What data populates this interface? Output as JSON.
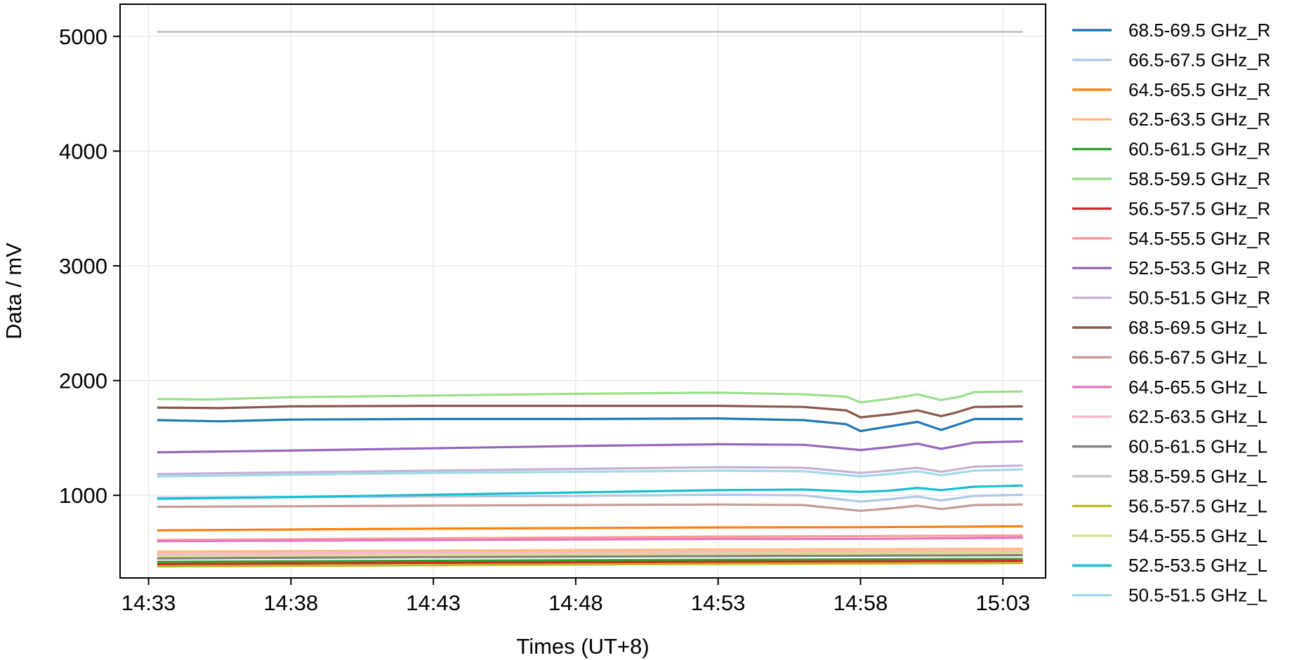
{
  "chart_data": {
    "type": "line",
    "xlabel": "Times (UT+8)",
    "ylabel": "Data / mV",
    "x_range": [
      "14:32:00",
      "15:04:30"
    ],
    "ylim": [
      280,
      5280
    ],
    "x_ticks": [
      "14:33",
      "14:38",
      "14:43",
      "14:48",
      "14:53",
      "14:58",
      "15:03"
    ],
    "y_ticks": [
      1000,
      2000,
      3000,
      4000,
      5000
    ],
    "grid": true,
    "legend_position": "outside-right",
    "x_start": "14:33:20",
    "x_end": "15:03:40",
    "series": [
      {
        "name": "68.5-69.5 GHz_R",
        "color": "#1f77b4",
        "x": [
          "14:33:20",
          "14:35:30",
          "14:38:00",
          "14:43:00",
          "14:48:00",
          "14:53:00",
          "14:56:00",
          "14:57:30",
          "14:58:00",
          "14:59:00",
          "15:00:00",
          "15:00:50",
          "15:01:20",
          "15:02:00",
          "15:03:40"
        ],
        "y": [
          1655,
          1645,
          1660,
          1665,
          1665,
          1670,
          1655,
          1620,
          1560,
          1600,
          1640,
          1570,
          1610,
          1665,
          1665
        ]
      },
      {
        "name": "66.5-67.5 GHz_R",
        "color": "#aec7e8",
        "x": [
          "14:33:20",
          "14:38:00",
          "14:43:00",
          "14:48:00",
          "14:53:00",
          "14:56:00",
          "14:58:00",
          "14:59:00",
          "15:00:00",
          "15:00:50",
          "15:02:00",
          "15:03:40"
        ],
        "y": [
          980,
          985,
          990,
          995,
          1005,
          1000,
          945,
          965,
          990,
          955,
          995,
          1005
        ]
      },
      {
        "name": "64.5-65.5 GHz_R",
        "color": "#ff7f0e",
        "x": [
          "14:33:20",
          "14:43:00",
          "14:53:00",
          "14:58:00",
          "15:03:40"
        ],
        "y": [
          695,
          710,
          720,
          722,
          730
        ]
      },
      {
        "name": "62.5-63.5 GHz_R",
        "color": "#ffbb78",
        "x": [
          "14:33:20",
          "14:43:00",
          "14:53:00",
          "14:58:00",
          "15:03:40"
        ],
        "y": [
          510,
          518,
          528,
          530,
          535
        ]
      },
      {
        "name": "60.5-61.5 GHz_R",
        "color": "#2ca02c",
        "x": [
          "14:33:20",
          "14:43:00",
          "14:53:00",
          "15:03:40"
        ],
        "y": [
          420,
          430,
          438,
          445
        ]
      },
      {
        "name": "58.5-59.5 GHz_R",
        "color": "#98df8a",
        "x": [
          "14:33:20",
          "14:35:00",
          "14:38:00",
          "14:43:00",
          "14:48:00",
          "14:53:00",
          "14:56:00",
          "14:57:30",
          "14:58:00",
          "14:59:00",
          "15:00:00",
          "15:00:50",
          "15:01:30",
          "15:02:00",
          "15:03:40"
        ],
        "y": [
          1840,
          1835,
          1855,
          1870,
          1885,
          1895,
          1880,
          1860,
          1810,
          1840,
          1880,
          1830,
          1860,
          1900,
          1905
        ]
      },
      {
        "name": "56.5-57.5 GHz_R",
        "color": "#d62728",
        "x": [
          "14:33:20",
          "14:43:00",
          "14:53:00",
          "15:03:40"
        ],
        "y": [
          400,
          412,
          420,
          428
        ]
      },
      {
        "name": "54.5-55.5 GHz_R",
        "color": "#ff9896",
        "x": [
          "14:33:20",
          "14:43:00",
          "14:53:00",
          "15:03:40"
        ],
        "y": [
          610,
          625,
          640,
          650
        ]
      },
      {
        "name": "52.5-53.5 GHz_R",
        "color": "#9467bd",
        "x": [
          "14:33:20",
          "14:38:00",
          "14:43:00",
          "14:48:00",
          "14:53:00",
          "14:56:00",
          "14:58:00",
          "14:59:00",
          "15:00:00",
          "15:00:50",
          "15:02:00",
          "15:03:40"
        ],
        "y": [
          1375,
          1390,
          1410,
          1430,
          1445,
          1440,
          1395,
          1420,
          1450,
          1405,
          1460,
          1470
        ]
      },
      {
        "name": "50.5-51.5 GHz_R",
        "color": "#c5b0d5",
        "x": [
          "14:33:20",
          "14:38:00",
          "14:43:00",
          "14:48:00",
          "14:53:00",
          "14:56:00",
          "14:58:00",
          "14:59:00",
          "15:00:00",
          "15:00:50",
          "15:02:00",
          "15:03:40"
        ],
        "y": [
          1185,
          1200,
          1215,
          1230,
          1245,
          1240,
          1195,
          1215,
          1240,
          1205,
          1250,
          1260
        ]
      },
      {
        "name": "68.5-69.5 GHz_L",
        "color": "#8c564b",
        "x": [
          "14:33:20",
          "14:35:30",
          "14:38:00",
          "14:43:00",
          "14:48:00",
          "14:53:00",
          "14:56:00",
          "14:57:30",
          "14:58:00",
          "14:59:00",
          "15:00:00",
          "15:00:50",
          "15:01:20",
          "15:02:00",
          "15:03:40"
        ],
        "y": [
          1765,
          1760,
          1775,
          1780,
          1780,
          1780,
          1770,
          1740,
          1680,
          1705,
          1740,
          1690,
          1720,
          1770,
          1775
        ]
      },
      {
        "name": "66.5-67.5 GHz_L",
        "color": "#c49c94",
        "x": [
          "14:33:20",
          "14:38:00",
          "14:43:00",
          "14:48:00",
          "14:53:00",
          "14:56:00",
          "14:58:00",
          "14:59:00",
          "15:00:00",
          "15:00:50",
          "15:02:00",
          "15:03:40"
        ],
        "y": [
          900,
          905,
          910,
          915,
          920,
          915,
          865,
          885,
          910,
          880,
          915,
          920
        ]
      },
      {
        "name": "64.5-65.5 GHz_L",
        "color": "#e377c2",
        "x": [
          "14:33:20",
          "14:43:00",
          "14:53:00",
          "14:58:00",
          "15:03:40"
        ],
        "y": [
          600,
          610,
          620,
          620,
          630
        ]
      },
      {
        "name": "62.5-63.5 GHz_L",
        "color": "#f7b6d2",
        "x": [
          "14:33:20",
          "14:43:00",
          "14:53:00",
          "15:03:40"
        ],
        "y": [
          490,
          500,
          508,
          515
        ]
      },
      {
        "name": "60.5-61.5 GHz_L",
        "color": "#7f7f7f",
        "x": [
          "14:33:20",
          "14:43:00",
          "14:53:00",
          "15:03:40"
        ],
        "y": [
          450,
          462,
          470,
          478
        ]
      },
      {
        "name": "58.5-59.5 GHz_L",
        "color": "#c7c7c7",
        "x": [
          "14:33:20",
          "15:03:40"
        ],
        "y": [
          5040,
          5040
        ]
      },
      {
        "name": "56.5-57.5 GHz_L",
        "color": "#bcbd22",
        "x": [
          "14:33:20",
          "14:43:00",
          "14:53:00",
          "15:03:40"
        ],
        "y": [
          380,
          392,
          402,
          410
        ]
      },
      {
        "name": "54.5-55.5 GHz_L",
        "color": "#dbdb8d",
        "x": [
          "14:33:20",
          "14:43:00",
          "14:53:00",
          "15:03:40"
        ],
        "y": [
          470,
          480,
          490,
          498
        ]
      },
      {
        "name": "52.5-53.5 GHz_L",
        "color": "#17becf",
        "x": [
          "14:33:20",
          "14:38:00",
          "14:43:00",
          "14:48:00",
          "14:53:00",
          "14:56:00",
          "14:58:00",
          "14:59:00",
          "15:00:00",
          "15:00:50",
          "15:02:00",
          "15:03:40"
        ],
        "y": [
          970,
          985,
          1005,
          1025,
          1045,
          1050,
          1030,
          1040,
          1065,
          1045,
          1075,
          1085
        ]
      },
      {
        "name": "50.5-51.5 GHz_L",
        "color": "#9edae5",
        "x": [
          "14:33:20",
          "14:38:00",
          "14:43:00",
          "14:48:00",
          "14:53:00",
          "14:56:00",
          "14:58:00",
          "14:59:00",
          "15:00:00",
          "15:00:50",
          "15:02:00",
          "15:03:40"
        ],
        "y": [
          1165,
          1180,
          1195,
          1205,
          1215,
          1210,
          1165,
          1185,
          1210,
          1175,
          1215,
          1225
        ]
      }
    ]
  }
}
